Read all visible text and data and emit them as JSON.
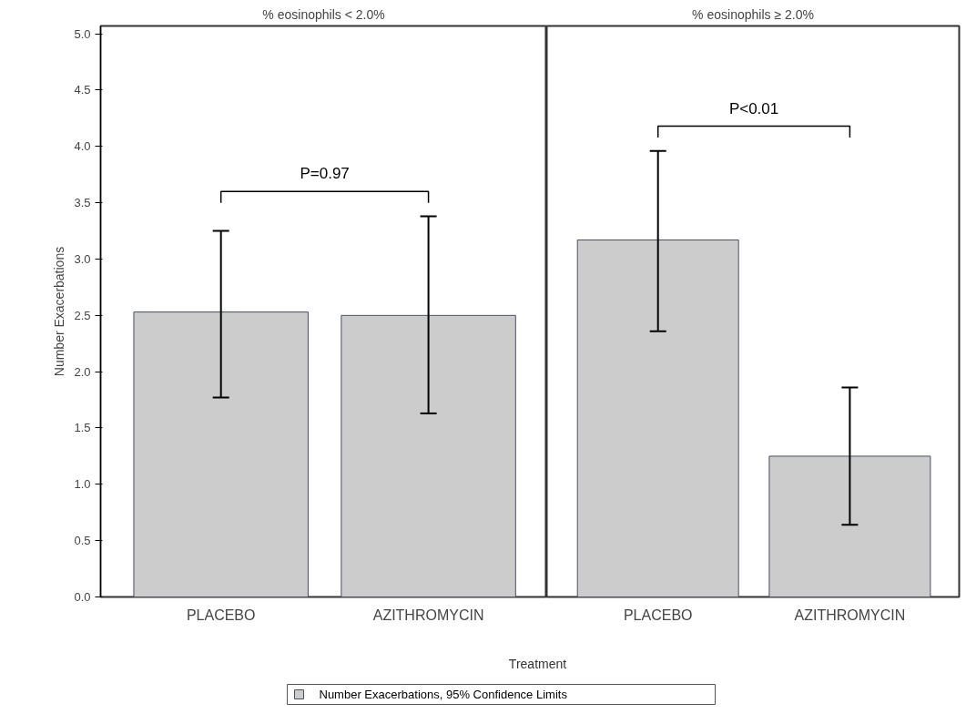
{
  "chart_data": [
    {
      "type": "bar",
      "title": "% eosinophils < 2.0%",
      "ylabel": "Number Exacerbations",
      "xlabel": "Treatment",
      "categories": [
        "PLACEBO",
        "AZITHROMYCIN"
      ],
      "series": [
        {
          "name": "Number Exacerbations, 95% Confidence Limits",
          "color": "#cccccc",
          "values": [
            2.53,
            2.5
          ],
          "errors": [
            [
              1.77,
              3.25
            ],
            [
              1.63,
              3.38
            ]
          ]
        }
      ],
      "ylim": [
        0,
        5.07
      ],
      "yticks": [
        {
          "value": 0,
          "label": "0.0"
        },
        {
          "value": 0.5,
          "label": "0.5"
        },
        {
          "value": 1,
          "label": "1.0"
        },
        {
          "value": 1.5,
          "label": "1.5"
        },
        {
          "value": 2,
          "label": "2.0"
        },
        {
          "value": 2.5,
          "label": "2.5"
        },
        {
          "value": 3,
          "label": "3.0"
        },
        {
          "value": 3.5,
          "label": "3.5"
        },
        {
          "value": 4,
          "label": "4.0"
        },
        {
          "value": 4.5,
          "label": "4.5"
        },
        {
          "value": 5,
          "label": "5.0"
        }
      ],
      "annotations": [
        "P=0.97"
      ],
      "legend": "bottom",
      "grid": false
    },
    {
      "type": "bar",
      "title": "% eosinophils ≥ 2.0%",
      "categories": [
        "PLACEBO",
        "AZITHROMYCIN"
      ],
      "series": [
        {
          "color": "#cccccc",
          "values": [
            3.17,
            1.25
          ],
          "errors": [
            [
              2.36,
              3.96
            ],
            [
              0.64,
              1.86
            ]
          ]
        }
      ],
      "ylim": [
        0,
        5.07
      ],
      "tick_labels": "x",
      "annotations": [
        "P<0.01"
      ],
      "grid": false
    }
  ]
}
